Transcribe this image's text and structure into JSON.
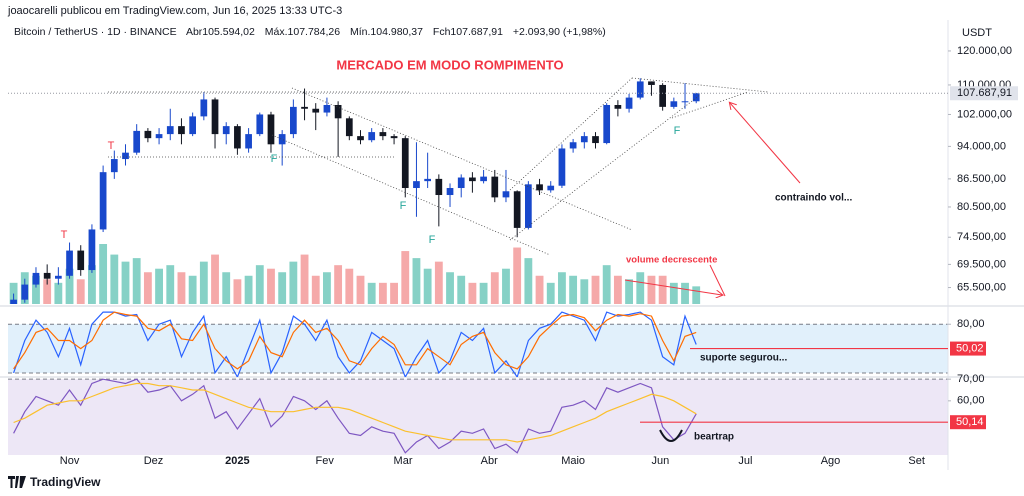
{
  "header": {
    "publisher": "joaocarelli publicou em TradingView.com, Jun 16, 2025 13:33 UTC-3",
    "symbol": "Bitcoin / TetherUS · 1D · BINANCE",
    "open": "Abr105.594,02",
    "high": "Máx.107.784,26",
    "low": "Mín.104.980,37",
    "close": "Fch107.687,91",
    "change": "+2.093,90 (+1,98%)"
  },
  "annotations": {
    "headline": "MERCADO EM MODO ROMPIMENTO",
    "volume_note": "volume decrescente",
    "contraction": "contraindo vol...",
    "support": "suporte segurou...",
    "beartrap": "beartrap",
    "markers": [
      "T",
      "T",
      "F",
      "F",
      "F",
      "F"
    ]
  },
  "footer": "TradingView",
  "chart_data": [
    {
      "type": "candlestick",
      "ylabel": "USDT",
      "log": true,
      "up_color": "#1848cc",
      "down_color": "#131722",
      "volume_up_color": "#86d1c6",
      "volume_down_color": "#f5a9a9",
      "xlim": [
        -0.5,
        83.5
      ],
      "ylim": [
        62800,
        125000
      ],
      "yticks": [
        {
          "value": 120000,
          "label": "120.000,00"
        },
        {
          "value": 110000,
          "label": "110.000,00"
        },
        {
          "value": 102000,
          "label": "102.000,00"
        },
        {
          "value": 94000,
          "label": "94.000,00"
        },
        {
          "value": 86500,
          "label": "86.500,00"
        },
        {
          "value": 80500,
          "label": "80.500,00"
        },
        {
          "value": 74500,
          "label": "74.500,00"
        },
        {
          "value": 69500,
          "label": "69.500,00"
        },
        {
          "value": 65500,
          "label": "65.500,00"
        }
      ],
      "last_price": {
        "value": 107687.91,
        "label": "107.687,91"
      },
      "open": [
        62500,
        63500,
        66000,
        68000,
        67000,
        67500,
        72000,
        68500,
        76000,
        88000,
        91000,
        92500,
        97800,
        96000,
        97000,
        99000,
        97000,
        101500,
        106000,
        97000,
        99000,
        93500,
        97000,
        102000,
        94500,
        97000,
        104000,
        103500,
        102500,
        104500,
        101000,
        96500,
        95500,
        97500,
        96500,
        96000,
        84500,
        86000,
        86500,
        83000,
        84500,
        86800,
        86000,
        87000,
        82500,
        83800,
        76300,
        85300,
        84000,
        85000,
        93500,
        95000,
        96500,
        94800,
        104500,
        103500,
        106500,
        111000,
        110000,
        104000,
        105500,
        105500
      ],
      "high": [
        64500,
        67000,
        69000,
        69500,
        69000,
        73500,
        73000,
        77000,
        89500,
        93000,
        94500,
        99500,
        98500,
        98500,
        103500,
        101000,
        102500,
        108000,
        106500,
        100000,
        99500,
        98500,
        102500,
        102700,
        98000,
        106000,
        109000,
        105000,
        106500,
        105500,
        101500,
        98000,
        98500,
        98500,
        97000,
        96500,
        95000,
        92500,
        87500,
        85500,
        87500,
        88000,
        88500,
        88500,
        88500,
        84000,
        86000,
        86500,
        86000,
        94500,
        95800,
        97500,
        97500,
        105000,
        105800,
        107500,
        111900,
        111000,
        110500,
        106500,
        110500,
        107785
      ],
      "low": [
        62000,
        63000,
        65500,
        66000,
        66000,
        67000,
        67500,
        68000,
        75500,
        86500,
        89500,
        92000,
        95000,
        94500,
        95500,
        94500,
        96500,
        100500,
        93500,
        94500,
        92000,
        92500,
        96500,
        92500,
        89500,
        96000,
        100500,
        98000,
        101500,
        91500,
        95500,
        94500,
        95000,
        95500,
        94500,
        82500,
        78500,
        84500,
        76600,
        80500,
        82500,
        83500,
        85500,
        81500,
        81500,
        74500,
        76000,
        83000,
        83500,
        84500,
        92500,
        93500,
        93500,
        94500,
        101500,
        102500,
        106000,
        107000,
        103000,
        103500,
        103500,
        104980
      ],
      "close": [
        63500,
        66000,
        68000,
        67000,
        67500,
        72000,
        68500,
        76000,
        88000,
        91000,
        92500,
        97800,
        96000,
        97000,
        99000,
        97000,
        101500,
        106000,
        97000,
        99000,
        93500,
        97000,
        102000,
        94500,
        97000,
        104000,
        103500,
        102500,
        104500,
        101000,
        96500,
        95500,
        97500,
        96500,
        96000,
        84500,
        86000,
        86500,
        83000,
        84500,
        86800,
        86000,
        87000,
        82500,
        83800,
        76300,
        85300,
        84000,
        85000,
        93500,
        95000,
        96500,
        94800,
        104500,
        103500,
        106500,
        111000,
        110000,
        104000,
        105500,
        105500,
        107687.91
      ],
      "volume": [
        30000,
        45000,
        40000,
        35000,
        30000,
        50000,
        35000,
        55000,
        85000,
        70000,
        60000,
        65000,
        45000,
        50000,
        55000,
        45000,
        40000,
        60000,
        70000,
        45000,
        35000,
        40000,
        55000,
        50000,
        45000,
        60000,
        70000,
        40000,
        45000,
        55000,
        50000,
        40000,
        30000,
        30000,
        30000,
        75000,
        65000,
        50000,
        60000,
        45000,
        40000,
        30000,
        30000,
        45000,
        50000,
        80000,
        65000,
        40000,
        30000,
        45000,
        40000,
        35000,
        40000,
        55000,
        40000,
        35000,
        45000,
        40000,
        40000,
        30000,
        30000,
        25000
      ]
    },
    {
      "type": "line",
      "xlim": [
        -0.5,
        83.5
      ],
      "ylim": [
        15,
        100
      ],
      "band": [
        20,
        80
      ],
      "band_color": "#e1f0fb",
      "yticks": [
        {
          "value": 80,
          "label": "80,00"
        }
      ],
      "last_value": {
        "value": 50.02,
        "label": "50,02"
      },
      "series": [
        {
          "color": "#2962ff",
          "values": [
            20,
            60,
            85,
            70,
            40,
            75,
            30,
            80,
            95,
            95,
            90,
            92,
            60,
            80,
            85,
            40,
            70,
            90,
            20,
            40,
            15,
            50,
            85,
            20,
            45,
            90,
            80,
            60,
            85,
            40,
            20,
            35,
            70,
            60,
            50,
            15,
            40,
            60,
            20,
            35,
            70,
            60,
            75,
            20,
            35,
            15,
            60,
            75,
            80,
            95,
            90,
            85,
            60,
            95,
            90,
            92,
            95,
            85,
            40,
            30,
            90,
            55
          ]
        },
        {
          "color": "#ff6d00",
          "values": [
            25,
            45,
            70,
            75,
            60,
            60,
            50,
            60,
            85,
            95,
            92,
            90,
            75,
            72,
            80,
            62,
            60,
            80,
            50,
            35,
            25,
            35,
            65,
            45,
            40,
            70,
            85,
            70,
            75,
            60,
            35,
            30,
            50,
            65,
            55,
            30,
            30,
            50,
            40,
            30,
            55,
            65,
            70,
            45,
            30,
            25,
            40,
            65,
            78,
            90,
            92,
            88,
            72,
            85,
            92,
            90,
            93,
            90,
            60,
            35,
            65,
            70
          ]
        }
      ]
    },
    {
      "type": "line",
      "xlim": [
        -0.5,
        83.5
      ],
      "ylim": [
        35,
        71
      ],
      "band": [
        30,
        70
      ],
      "band_color": "#ede7f6",
      "yticks": [
        {
          "value": 70,
          "label": "70,00"
        },
        {
          "value": 60,
          "label": "60,00"
        }
      ],
      "last_value": {
        "value": 50.14,
        "label": "50,14"
      },
      "xticks": [
        {
          "value": 5,
          "label": "Nov"
        },
        {
          "value": 12.5,
          "label": "Dez"
        },
        {
          "value": 20,
          "label": "2025"
        },
        {
          "value": 27.8,
          "label": "Fev"
        },
        {
          "value": 34.8,
          "label": "Mar"
        },
        {
          "value": 42.5,
          "label": "Abr"
        },
        {
          "value": 50,
          "label": "Maio"
        },
        {
          "value": 57.8,
          "label": "Jun"
        },
        {
          "value": 65.4,
          "label": "Jul"
        },
        {
          "value": 73,
          "label": "Ago"
        },
        {
          "value": 80.7,
          "label": "Set"
        }
      ],
      "series": [
        {
          "color": "#7e57c2",
          "values": [
            45,
            55,
            62,
            60,
            58,
            65,
            58,
            68,
            70,
            69,
            68,
            70,
            64,
            65,
            67,
            60,
            63,
            67,
            52,
            55,
            47,
            54,
            61,
            48,
            53,
            62,
            60,
            56,
            60,
            52,
            45,
            44,
            48,
            46,
            45,
            36,
            41,
            44,
            38,
            41,
            46,
            45,
            47,
            38,
            40,
            36,
            47,
            45,
            46,
            57,
            58,
            60,
            56,
            66,
            64,
            66,
            68,
            66,
            48,
            42,
            45,
            54
          ]
        },
        {
          "color": "#fbc02d",
          "values": [
            50,
            52,
            55,
            58,
            59,
            60,
            60,
            62,
            64,
            66,
            67,
            68,
            68,
            67,
            67,
            66,
            65,
            65,
            63,
            61,
            59,
            57,
            56,
            55,
            55,
            55,
            56,
            57,
            57,
            57,
            56,
            54,
            52,
            50,
            48,
            46,
            45,
            44,
            43,
            42,
            42,
            42,
            42,
            42,
            42,
            41,
            42,
            43,
            44,
            46,
            48,
            50,
            52,
            55,
            57,
            59,
            61,
            63,
            62,
            60,
            57,
            54
          ]
        }
      ]
    }
  ]
}
